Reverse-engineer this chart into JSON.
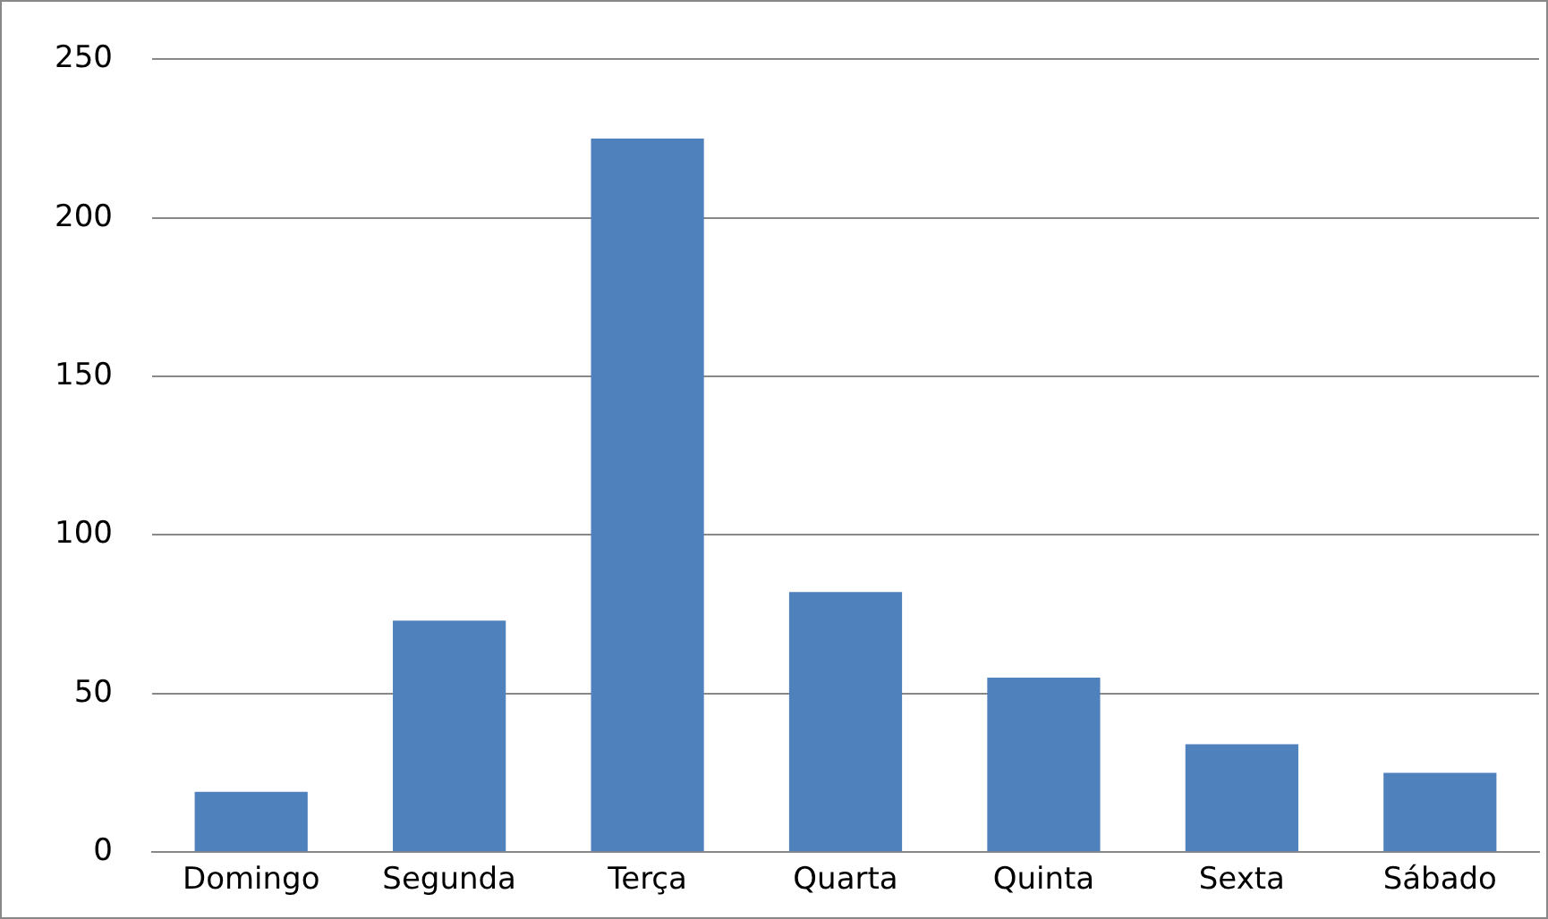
{
  "chart_data": {
    "type": "bar",
    "categories": [
      "Domingo",
      "Segunda",
      "Terça",
      "Quarta",
      "Quinta",
      "Sexta",
      "Sábado"
    ],
    "values": [
      19,
      73,
      225,
      82,
      55,
      34,
      25
    ],
    "color": "#4f81bd",
    "ylim": [
      0,
      250
    ],
    "yticks": [
      0,
      50,
      100,
      150,
      200,
      250
    ],
    "grid": "y",
    "legend": false
  }
}
